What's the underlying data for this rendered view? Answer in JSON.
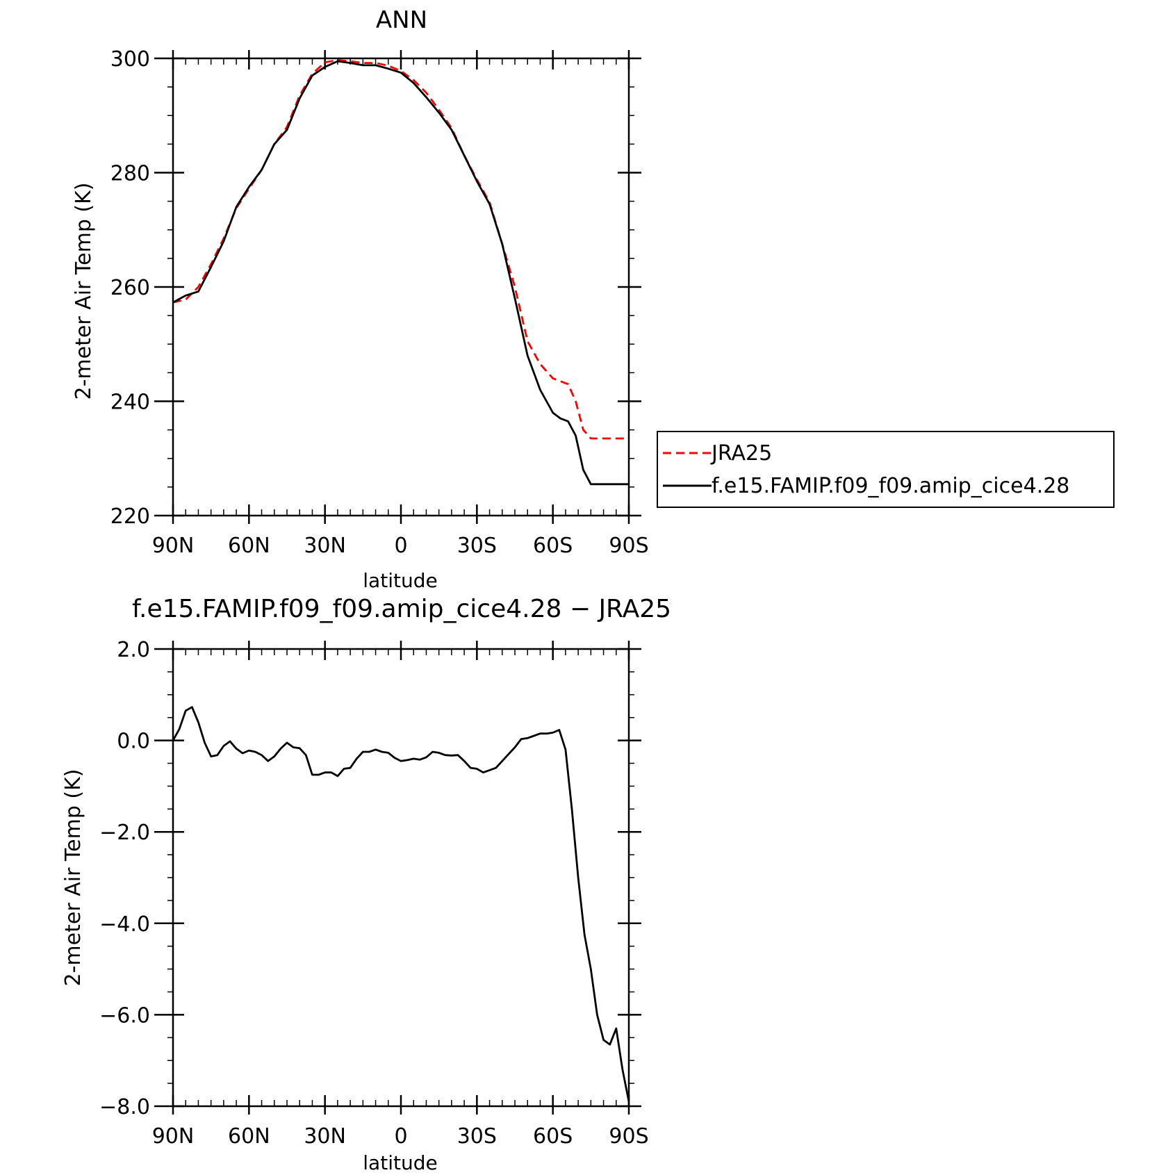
{
  "chart_data": [
    {
      "type": "line",
      "title": "ANN",
      "xlabel": "latitude",
      "ylabel": "2-meter Air Temp (K)",
      "xlim": [
        90,
        -90
      ],
      "ylim": [
        220,
        300
      ],
      "x_ticks": [
        90,
        60,
        30,
        0,
        -30,
        -60,
        -90
      ],
      "x_tick_labels": [
        "90N",
        "60N",
        "30N",
        "0",
        "30S",
        "60S",
        "90S"
      ],
      "y_ticks": [
        220,
        240,
        260,
        280,
        300
      ],
      "y_tick_labels": [
        "220",
        "240",
        "260",
        "280",
        "300"
      ],
      "grid": false,
      "legend_position": "right",
      "series": [
        {
          "name": "JRA25",
          "color": "#ff0000",
          "style": "dashed",
          "x": [
            90,
            85,
            80,
            75,
            70,
            65,
            60,
            55,
            50,
            45,
            40,
            35,
            30,
            25,
            20,
            15,
            10,
            5,
            0,
            -5,
            -10,
            -15,
            -20,
            -25,
            -30,
            -35,
            -40,
            -45,
            -50,
            -55,
            -60,
            -63,
            -66,
            -69,
            -72,
            -75,
            -78,
            -81,
            -84,
            -87,
            -90
          ],
          "values": [
            257.3,
            257.8,
            260.0,
            264.0,
            268.5,
            273.8,
            277.2,
            280.5,
            285.0,
            288.0,
            293.5,
            297.3,
            299.3,
            299.7,
            299.5,
            299.2,
            299.2,
            298.7,
            297.8,
            296.2,
            294.0,
            291.0,
            287.8,
            283.0,
            278.8,
            274.8,
            267.5,
            260.0,
            250.5,
            246.5,
            244.0,
            243.5,
            243.0,
            240.0,
            235.0,
            233.5,
            233.5,
            233.5,
            233.5,
            233.5,
            233.5
          ]
        },
        {
          "name": "f.e15.FAMIP.f09_f09.amip_cice4.28",
          "color": "#000000",
          "style": "solid",
          "x": [
            90,
            85,
            80,
            75,
            70,
            65,
            60,
            55,
            50,
            45,
            40,
            35,
            30,
            25,
            20,
            15,
            10,
            5,
            0,
            -5,
            -10,
            -15,
            -20,
            -25,
            -30,
            -35,
            -40,
            -45,
            -50,
            -55,
            -60,
            -63,
            -66,
            -69,
            -72,
            -75,
            -78,
            -81,
            -84,
            -87,
            -90
          ],
          "values": [
            257.3,
            258.5,
            259.2,
            263.5,
            268.0,
            274.0,
            277.5,
            280.5,
            285.0,
            287.5,
            293.0,
            297.0,
            298.5,
            299.5,
            299.2,
            298.8,
            298.8,
            298.2,
            297.5,
            295.7,
            293.2,
            290.5,
            287.5,
            283.0,
            278.5,
            274.5,
            267.5,
            258.0,
            248.0,
            242.0,
            238.0,
            237.0,
            236.5,
            234.0,
            228.0,
            225.5,
            225.5,
            225.5,
            225.5,
            225.5,
            225.5
          ]
        }
      ]
    },
    {
      "type": "line",
      "title": "f.e15.FAMIP.f09_f09.amip_cice4.28 − JRA25",
      "xlabel": "latitude",
      "ylabel": "2-meter Air Temp (K)",
      "xlim": [
        90,
        -90
      ],
      "ylim": [
        -8.0,
        2.0
      ],
      "x_ticks": [
        90,
        60,
        30,
        0,
        -30,
        -60,
        -90
      ],
      "x_tick_labels": [
        "90N",
        "60N",
        "30N",
        "0",
        "30S",
        "60S",
        "90S"
      ],
      "y_ticks": [
        -8,
        -6,
        -4,
        -2,
        0,
        2
      ],
      "y_tick_labels": [
        "−8.0",
        "−6.0",
        "−4.0",
        "−2.0",
        "0.0",
        "2.0"
      ],
      "grid": false,
      "series": [
        {
          "color": "#000000",
          "style": "solid",
          "x": [
            90,
            87.5,
            85,
            82.5,
            80,
            77.5,
            75,
            72.5,
            70,
            67.5,
            65,
            62.5,
            60,
            57.5,
            55,
            52.5,
            50,
            47.5,
            45,
            42.5,
            40,
            37.5,
            35,
            32.5,
            30,
            27.5,
            25,
            22.5,
            20,
            17.5,
            15,
            12.5,
            10,
            7.5,
            5,
            2.5,
            0,
            -2.5,
            -5,
            -7.5,
            -10,
            -12.5,
            -15,
            -17.5,
            -20,
            -22.5,
            -25,
            -27.5,
            -30,
            -32.5,
            -35,
            -37.5,
            -40,
            -42.5,
            -45,
            -47.5,
            -50,
            -52.5,
            -55,
            -57.5,
            -60,
            -62.5,
            -65,
            -67.5,
            -70,
            -72.5,
            -75,
            -77.5,
            -80,
            -82.5,
            -85,
            -87.5,
            -90
          ],
          "values": [
            0.0,
            0.25,
            0.65,
            0.73,
            0.4,
            -0.05,
            -0.35,
            -0.32,
            -0.12,
            -0.02,
            -0.18,
            -0.28,
            -0.22,
            -0.25,
            -0.32,
            -0.45,
            -0.35,
            -0.18,
            -0.05,
            -0.15,
            -0.17,
            -0.32,
            -0.75,
            -0.75,
            -0.7,
            -0.7,
            -0.78,
            -0.62,
            -0.6,
            -0.4,
            -0.25,
            -0.25,
            -0.2,
            -0.25,
            -0.27,
            -0.38,
            -0.45,
            -0.43,
            -0.4,
            -0.42,
            -0.37,
            -0.25,
            -0.27,
            -0.32,
            -0.33,
            -0.32,
            -0.45,
            -0.6,
            -0.62,
            -0.7,
            -0.65,
            -0.6,
            -0.45,
            -0.3,
            -0.15,
            0.03,
            0.05,
            0.1,
            0.15,
            0.15,
            0.17,
            0.23,
            -0.2,
            -1.5,
            -3.0,
            -4.25,
            -5.0,
            -6.0,
            -6.55,
            -6.65,
            -6.3,
            -7.2,
            -7.9
          ]
        }
      ]
    }
  ]
}
